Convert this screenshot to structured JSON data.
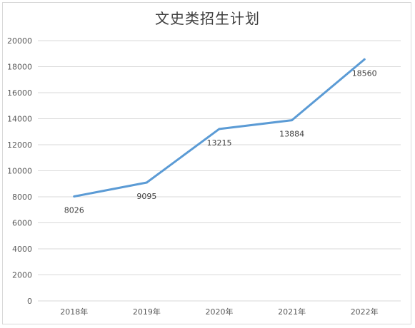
{
  "chart_data": {
    "type": "line",
    "title": "文史类招生计划",
    "xlabel": "",
    "ylabel": "",
    "categories": [
      "2018年",
      "2019年",
      "2020年",
      "2021年",
      "2022年"
    ],
    "series": [
      {
        "values": [
          8026,
          9095,
          13215,
          13884,
          18560
        ]
      }
    ],
    "data_labels": [
      "8026",
      "9095",
      "13215",
      "13884",
      "18560"
    ],
    "ylim": [
      0,
      20000
    ],
    "yticks": [
      "0",
      "2000",
      "4000",
      "6000",
      "8000",
      "10000",
      "12000",
      "14000",
      "16000",
      "18000",
      "20000"
    ],
    "grid": true,
    "legend": "none",
    "colors": {
      "line": "#5b9bd5",
      "grid": "#d9d9d9"
    }
  }
}
